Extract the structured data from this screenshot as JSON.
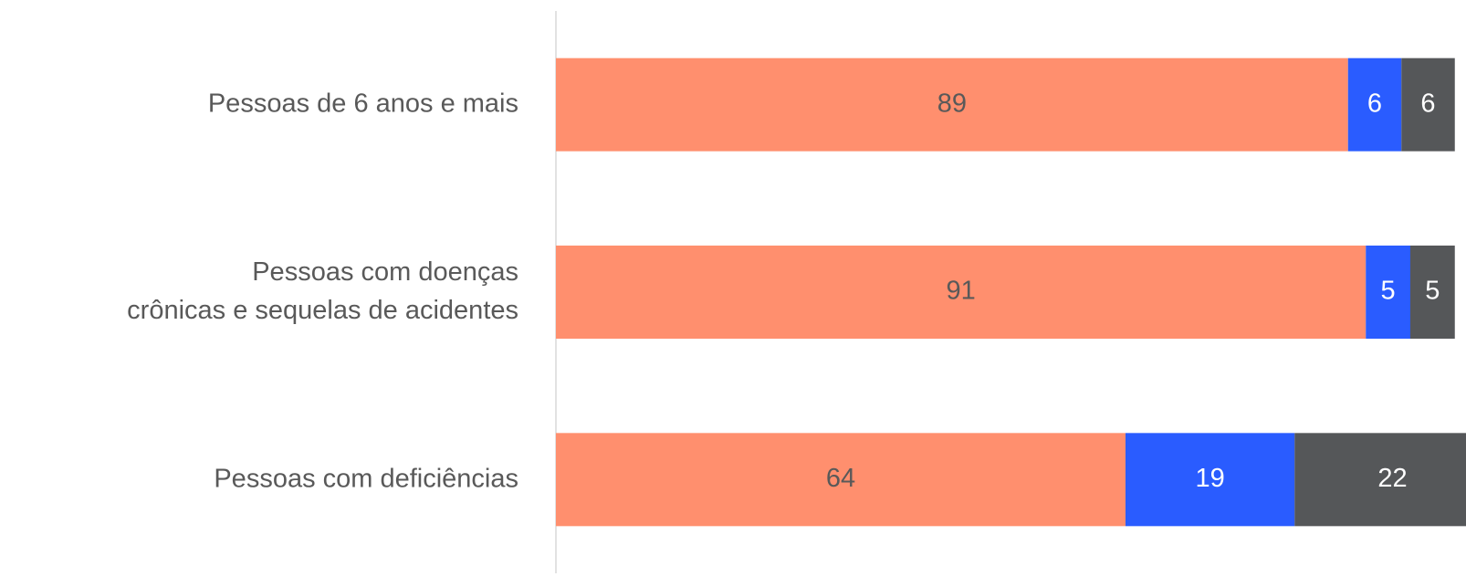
{
  "chart_data": {
    "type": "stacked-bar-horizontal",
    "categories": [
      "Pessoas de 6 anos e mais",
      "Pessoas com doenças\ncrônicas e sequelas de acidentes ",
      "Pessoas com deficiências"
    ],
    "series": [
      {
        "color": "#ff8f6e",
        "label_color": "#595959",
        "values": [
          89,
          91,
          64
        ]
      },
      {
        "color": "#2a5cff",
        "label_color": "#ffffff",
        "values": [
          6,
          5,
          19
        ]
      },
      {
        "color": "#555759",
        "label_color": "#ffffff",
        "values": [
          6,
          5,
          22
        ]
      }
    ]
  }
}
